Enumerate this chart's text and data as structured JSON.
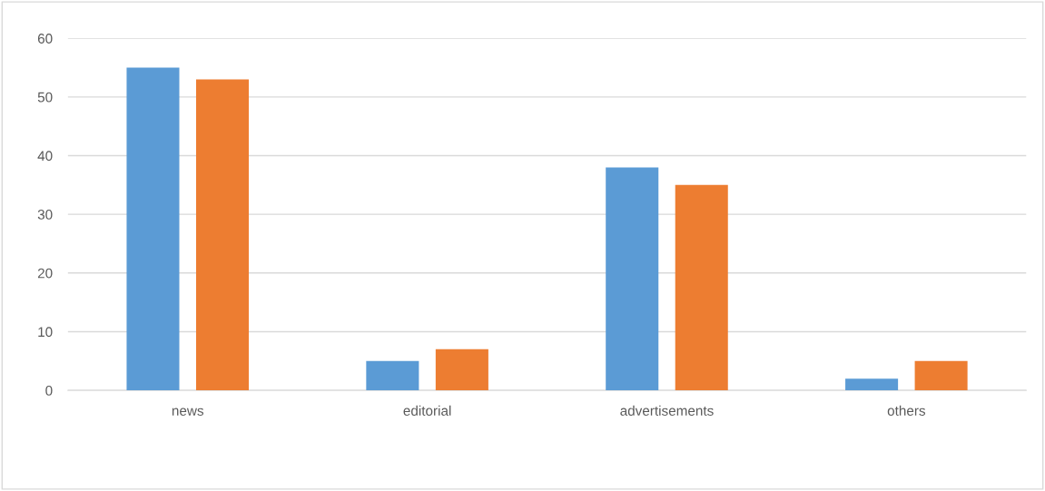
{
  "chart_data": {
    "type": "bar",
    "categories": [
      "news",
      "editorial",
      "advertisements",
      "others"
    ],
    "series": [
      {
        "color": "#5b9bd5",
        "values": [
          55,
          5,
          38,
          2
        ]
      },
      {
        "color": "#ed7d31",
        "values": [
          53,
          7,
          35,
          5
        ]
      }
    ],
    "ylim": [
      0,
      60
    ],
    "yticks": [
      0,
      10,
      20,
      30,
      40,
      50,
      60
    ],
    "grid": "y"
  }
}
